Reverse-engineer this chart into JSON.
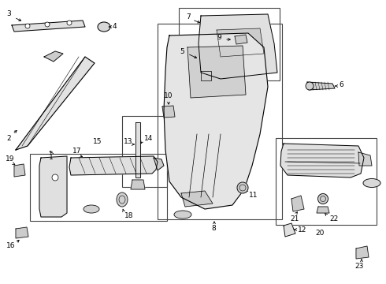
{
  "bg_color": "#ffffff",
  "line_color": "#000000",
  "font_size": 6.5,
  "boxes": {
    "group_13_14": [
      0.305,
      0.42,
      0.11,
      0.26
    ],
    "group_5_7": [
      0.46,
      0.72,
      0.195,
      0.255
    ],
    "group_8_11": [
      0.435,
      0.055,
      0.24,
      0.68
    ],
    "group_17_18": [
      0.075,
      0.175,
      0.265,
      0.235
    ],
    "group_20_22": [
      0.68,
      0.175,
      0.21,
      0.305
    ]
  }
}
